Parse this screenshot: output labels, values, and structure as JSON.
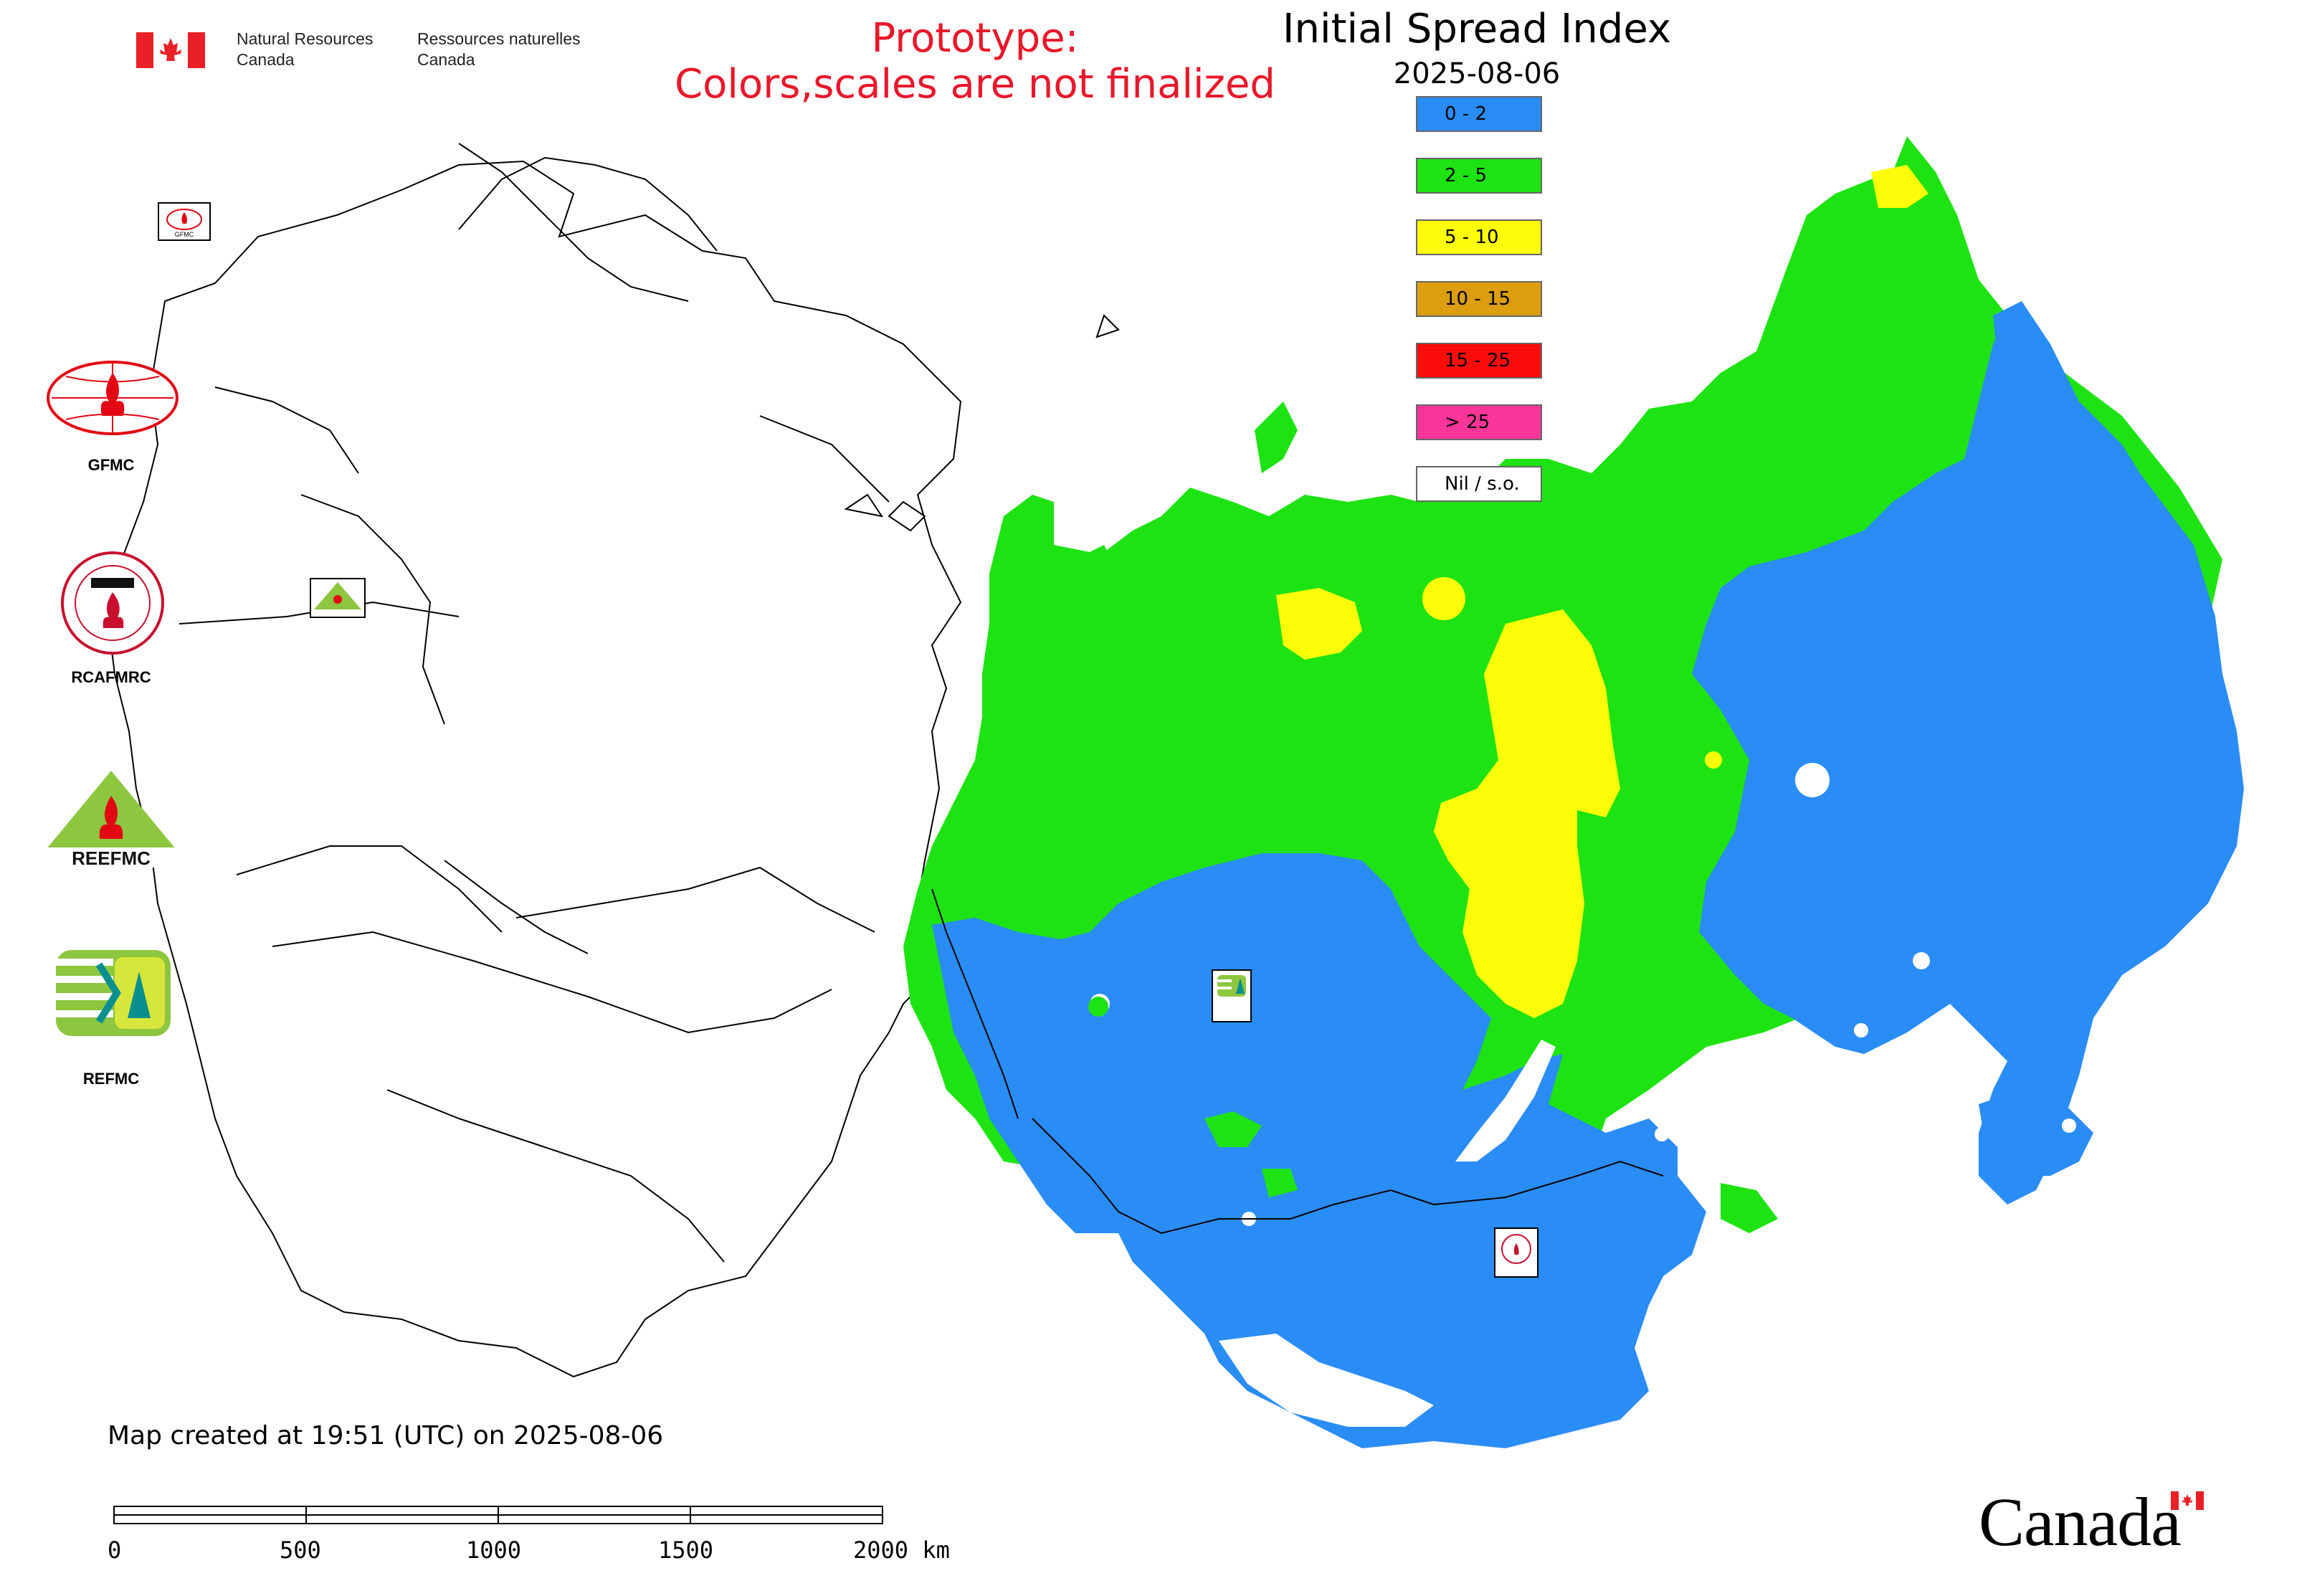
{
  "header": {
    "dept_en_line1": "Natural Resources",
    "dept_en_line2": "Canada",
    "dept_fr_line1": "Ressources naturelles",
    "dept_fr_line2": "Canada",
    "prototype_line1": "Prototype:",
    "prototype_line2": "Colors,scales are not finalized",
    "title": "Initial Spread Index",
    "date": "2025-08-06"
  },
  "legend": [
    {
      "label": "0 - 2",
      "color": "#2a8cf5"
    },
    {
      "label": "2 - 5",
      "color": "#1ee312"
    },
    {
      "label": "5 - 10",
      "color": "#fdfc09"
    },
    {
      "label": "10 - 15",
      "color": "#dc9e0e"
    },
    {
      "label": "15 - 25",
      "color": "#fe0c0c"
    },
    {
      "label": "> 25",
      "color": "#fb3599"
    },
    {
      "label": "Nil / s.o.",
      "color": "#ffffff"
    }
  ],
  "logos": {
    "gfmc": "GFMC",
    "rcafmrc": "RCAFMRC",
    "reefmc": "REEFMC",
    "refmc": "REFMC",
    "rcafmrc_ring": "RCAFMRC",
    "gfmc_badge": "GFMC"
  },
  "footer": {
    "map_created": "Map created at 19:51 (UTC) on 2025-08-06",
    "scale_labels": [
      "0",
      "500",
      "1000",
      "1500",
      "2000 km"
    ],
    "canada_wordmark": "Canada"
  },
  "colors": {
    "brand_red": "#e8182a",
    "flag_red": "#ea2026",
    "map_outline": "#000000"
  }
}
